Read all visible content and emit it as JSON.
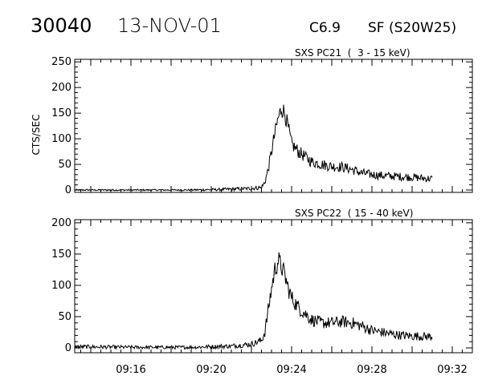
{
  "header": {
    "event_id": "30040",
    "date": "13-NOV-01",
    "goes_class": "C6.9",
    "optical_location": "SF (S20W25)"
  },
  "chart_data": [
    {
      "type": "line",
      "title": "SXS PC21  (  3 - 15 keV)",
      "ylabel": "CTS/SEC",
      "xlabel": "",
      "xlim": [
        "09:13:12",
        "09:33:00"
      ],
      "ylim": [
        0,
        255
      ],
      "yticks": [
        0,
        50,
        100,
        150,
        200,
        250
      ],
      "grid": false,
      "series": [
        {
          "points": [
            [
              "09:13:12",
              0
            ],
            [
              "09:16:00",
              0
            ],
            [
              "09:19:00",
              0
            ],
            [
              "09:20:30",
              1
            ],
            [
              "09:22:00",
              3
            ],
            [
              "09:22:30",
              5
            ],
            [
              "09:22:40",
              15
            ],
            [
              "09:22:50",
              40
            ],
            [
              "09:23:00",
              75
            ],
            [
              "09:23:10",
              110
            ],
            [
              "09:23:20",
              140
            ],
            [
              "09:23:30",
              160
            ],
            [
              "09:23:40",
              150
            ],
            [
              "09:23:50",
              120
            ],
            [
              "09:24:00",
              90
            ],
            [
              "09:24:20",
              75
            ],
            [
              "09:24:40",
              65
            ],
            [
              "09:25:00",
              55
            ],
            [
              "09:25:30",
              50
            ],
            [
              "09:26:00",
              46
            ],
            [
              "09:26:30",
              45
            ],
            [
              "09:27:00",
              40
            ],
            [
              "09:27:30",
              33
            ],
            [
              "09:28:00",
              30
            ],
            [
              "09:28:30",
              28
            ],
            [
              "09:29:00",
              27
            ],
            [
              "09:29:30",
              26
            ],
            [
              "09:30:00",
              25
            ],
            [
              "09:30:30",
              23
            ],
            [
              "09:31:00",
              22
            ]
          ]
        }
      ]
    },
    {
      "type": "line",
      "title": "SXS PC22  ( 15 - 40 keV)",
      "ylabel": "",
      "xlabel": "",
      "xlim": [
        "09:13:12",
        "09:33:00"
      ],
      "ylim": [
        0,
        205
      ],
      "yticks": [
        0,
        50,
        100,
        150,
        200
      ],
      "xticks": [
        "09:16",
        "09:20",
        "09:24",
        "09:28",
        "09:32"
      ],
      "grid": false,
      "series": [
        {
          "points": [
            [
              "09:13:12",
              2
            ],
            [
              "09:16:00",
              1
            ],
            [
              "09:19:00",
              1
            ],
            [
              "09:20:00",
              2
            ],
            [
              "09:21:00",
              3
            ],
            [
              "09:22:00",
              6
            ],
            [
              "09:22:30",
              12
            ],
            [
              "09:22:40",
              25
            ],
            [
              "09:22:50",
              60
            ],
            [
              "09:23:00",
              95
            ],
            [
              "09:23:10",
              125
            ],
            [
              "09:23:20",
              140
            ],
            [
              "09:23:30",
              130
            ],
            [
              "09:23:40",
              115
            ],
            [
              "09:23:50",
              95
            ],
            [
              "09:24:00",
              80
            ],
            [
              "09:24:20",
              65
            ],
            [
              "09:24:40",
              55
            ],
            [
              "09:25:00",
              45
            ],
            [
              "09:25:30",
              40
            ],
            [
              "09:26:00",
              40
            ],
            [
              "09:26:30",
              42
            ],
            [
              "09:27:00",
              40
            ],
            [
              "09:27:30",
              35
            ],
            [
              "09:28:00",
              28
            ],
            [
              "09:28:30",
              25
            ],
            [
              "09:29:00",
              22
            ],
            [
              "09:29:30",
              20
            ],
            [
              "09:30:00",
              19
            ],
            [
              "09:31:00",
              18
            ]
          ]
        }
      ]
    }
  ]
}
